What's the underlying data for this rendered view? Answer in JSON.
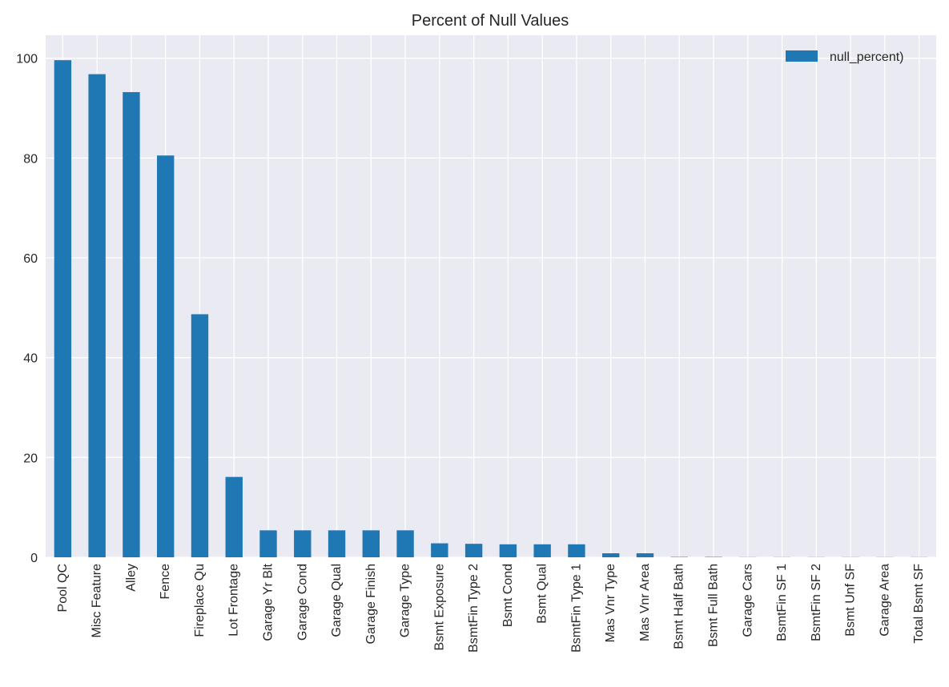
{
  "chart_data": {
    "type": "bar",
    "title": "Percent of Null Values",
    "xlabel": "",
    "ylabel": "",
    "categories": [
      "Pool QC",
      "Misc Feature",
      "Alley",
      "Fence",
      "Fireplace Qu",
      "Lot Frontage",
      "Garage Yr Blt",
      "Garage Cond",
      "Garage Qual",
      "Garage Finish",
      "Garage Type",
      "Bsmt Exposure",
      "BsmtFin Type 2",
      "Bsmt Cond",
      "Bsmt Qual",
      "BsmtFin Type 1",
      "Mas Vnr Type",
      "Mas Vnr Area",
      "Bsmt Half Bath",
      "Bsmt Full Bath",
      "Garage Cars",
      "BsmtFin SF 1",
      "BsmtFin SF 2",
      "Bsmt Unf SF",
      "Garage Area",
      "Total Bsmt SF"
    ],
    "series": [
      {
        "name": "null_percent)",
        "color": "#1f77b4",
        "values": [
          99.6,
          96.8,
          93.2,
          80.5,
          48.7,
          16.1,
          5.4,
          5.4,
          5.4,
          5.4,
          5.4,
          2.8,
          2.7,
          2.6,
          2.6,
          2.6,
          0.8,
          0.8,
          0.07,
          0.07,
          0.03,
          0.03,
          0.03,
          0.03,
          0.03,
          0.03
        ]
      }
    ],
    "yticks": [
      0,
      20,
      40,
      60,
      80,
      100
    ],
    "ylim": [
      0,
      104.6
    ],
    "grid": true,
    "legend": "top-right",
    "background_color": "#eaeaf2",
    "grid_color": "#ffffff"
  }
}
